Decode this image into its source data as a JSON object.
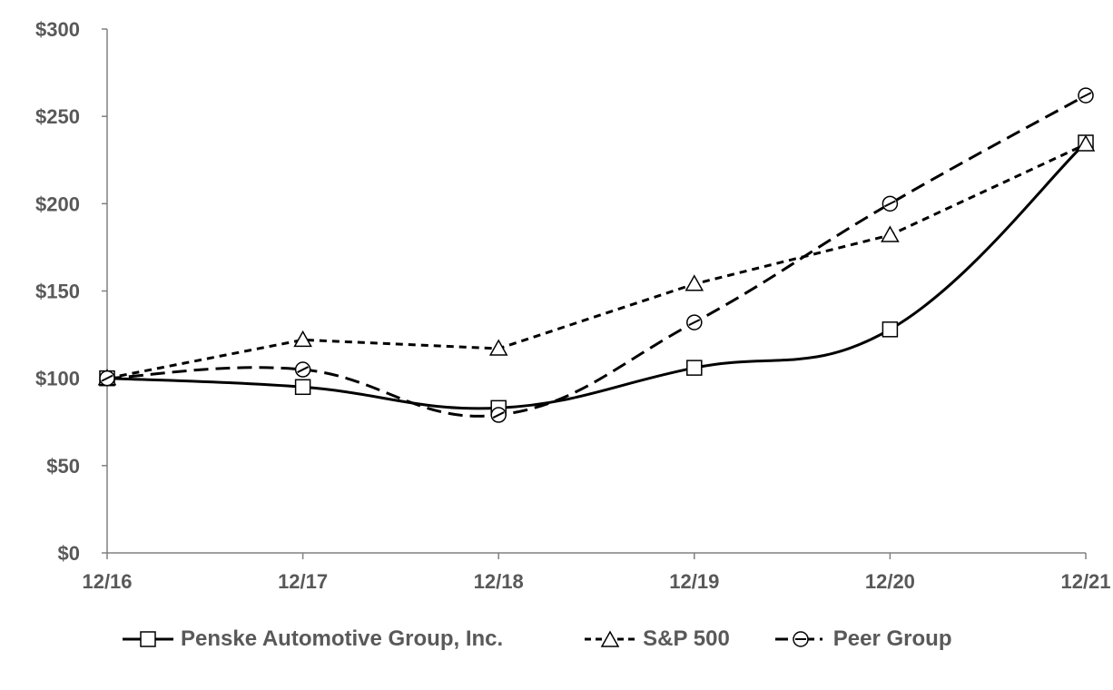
{
  "chart_data": {
    "type": "line",
    "title": "",
    "xlabel": "",
    "ylabel": "",
    "categories": [
      "12/16",
      "12/17",
      "12/18",
      "12/19",
      "12/20",
      "12/21"
    ],
    "ylim": [
      0,
      300
    ],
    "yticks": [
      0,
      50,
      100,
      150,
      200,
      250,
      300
    ],
    "ytick_labels": [
      "$0",
      "$50",
      "$100",
      "$150",
      "$200",
      "$250",
      "$300"
    ],
    "grid": false,
    "legend_position": "bottom",
    "series": [
      {
        "name": "Penske Automotive Group, Inc.",
        "marker": "square",
        "style": "solid",
        "smooth": true,
        "values": [
          100,
          95,
          83,
          106,
          128,
          235
        ]
      },
      {
        "name": "S&P 500",
        "marker": "triangle",
        "style": "dashed",
        "smooth": false,
        "values": [
          100,
          122,
          117,
          154,
          182,
          234
        ]
      },
      {
        "name": "Peer Group",
        "marker": "circle",
        "style": "dash-dot",
        "smooth": true,
        "values": [
          100,
          105,
          79,
          132,
          200,
          262
        ]
      }
    ],
    "colors": {
      "line": "#000000",
      "text": "#595959",
      "axis": "#808080"
    }
  }
}
